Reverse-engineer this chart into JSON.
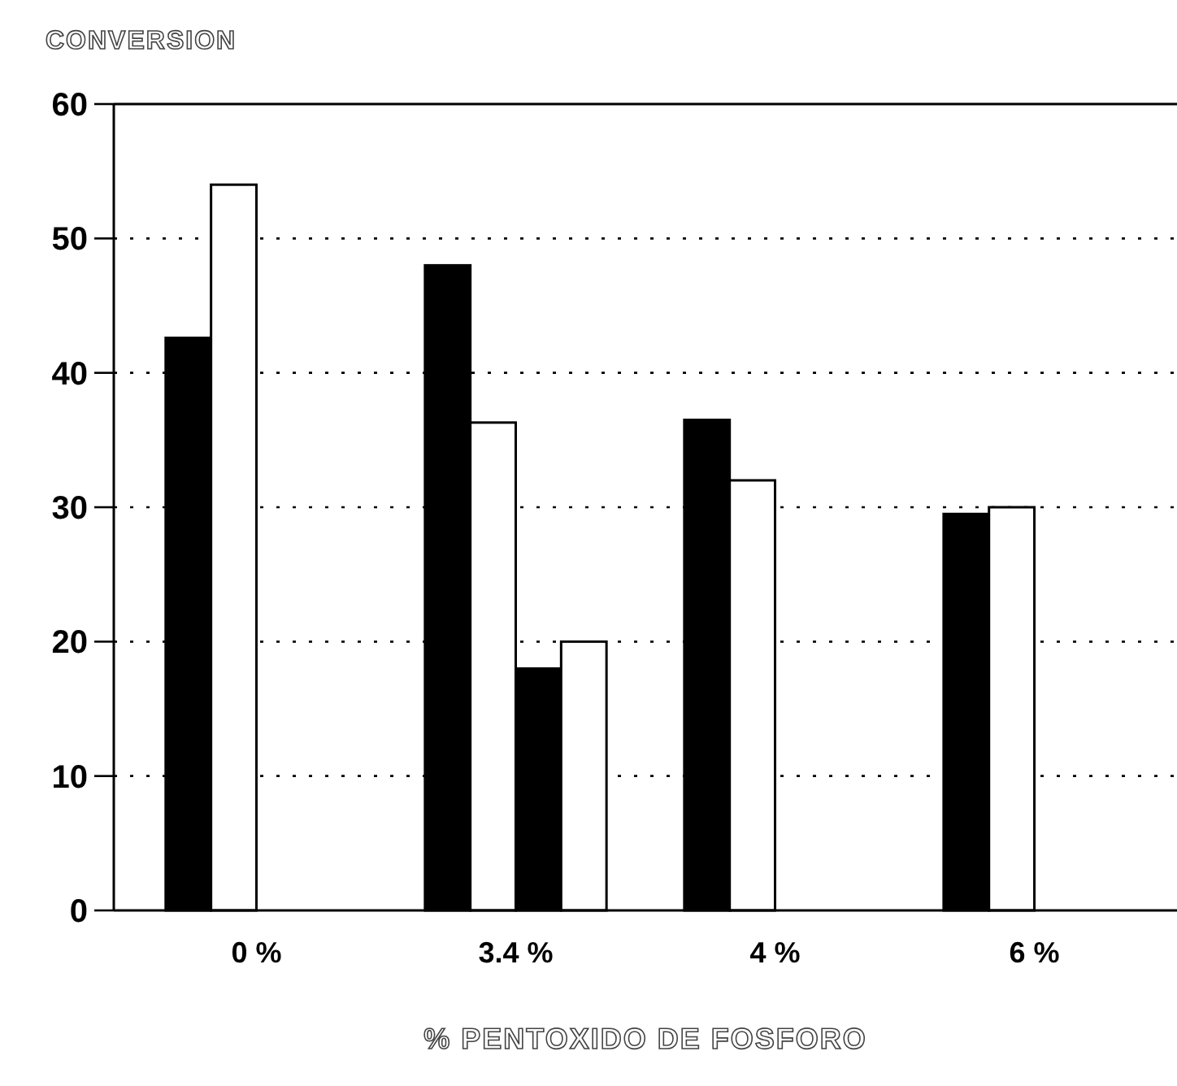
{
  "chart_data": {
    "type": "bar",
    "title": "CONVERSION",
    "xlabel": "% PENTOXIDO DE FOSFORO",
    "categories": [
      "0 %",
      "3.4 %",
      "4 %",
      "6 %"
    ],
    "series": [
      {
        "color": "#000000",
        "values": [
          42.6,
          48,
          36.5,
          29.5
        ]
      },
      {
        "color": "#ffffff",
        "values": [
          54,
          36.3,
          32,
          30
        ]
      },
      {
        "color": "#000000",
        "values": [
          null,
          18,
          null,
          null
        ]
      },
      {
        "color": "#ffffff",
        "values": [
          null,
          20,
          null,
          null
        ]
      }
    ],
    "ylim": [
      0,
      60
    ],
    "yticks": [
      0,
      10,
      20,
      30,
      40,
      50,
      60
    ],
    "grid": "y"
  }
}
